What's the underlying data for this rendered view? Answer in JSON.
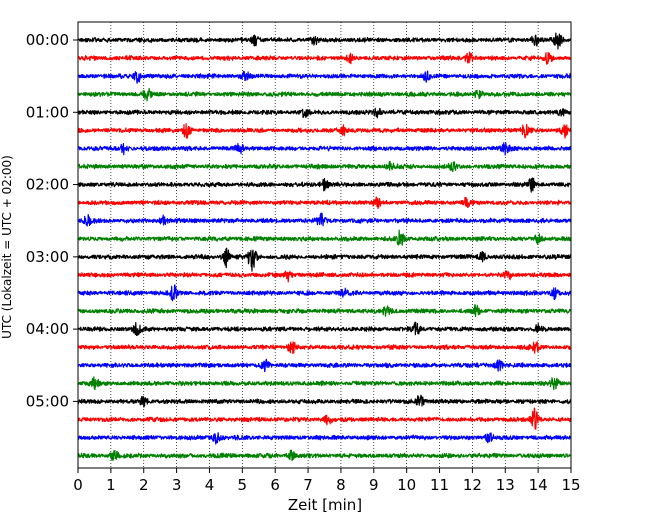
{
  "chart_data": {
    "type": "line",
    "title": "",
    "xlabel": "Zeit  [min]",
    "ylabel": "UTC (Lokalzeit = UTC + 02:00)",
    "xlim": [
      0,
      15
    ],
    "x_ticks": [
      "0",
      "1",
      "2",
      "3",
      "4",
      "5",
      "6",
      "7",
      "8",
      "9",
      "10",
      "11",
      "12",
      "13",
      "14",
      "15"
    ],
    "y_tick_labels": [
      "00:00",
      "01:00",
      "02:00",
      "03:00",
      "04:00",
      "05:00"
    ],
    "y_tick_rows": [
      0,
      4,
      8,
      12,
      16,
      20
    ],
    "grid": "vertical dotted",
    "trace_interval_min": 15,
    "trace_colors": [
      "#000000",
      "#ff0000",
      "#0000ff",
      "#008000"
    ],
    "traces": [
      {
        "start": "00:00",
        "color": "#000000",
        "events": [
          [
            5.4,
            5
          ],
          [
            7.2,
            4
          ],
          [
            13.9,
            6
          ],
          [
            14.6,
            7
          ]
        ]
      },
      {
        "start": "00:15",
        "color": "#ff0000",
        "events": [
          [
            8.3,
            4
          ],
          [
            11.9,
            5
          ],
          [
            14.3,
            5
          ]
        ]
      },
      {
        "start": "00:30",
        "color": "#0000ff",
        "events": [
          [
            1.8,
            7
          ],
          [
            5.1,
            4
          ],
          [
            10.6,
            4
          ]
        ]
      },
      {
        "start": "00:45",
        "color": "#008000",
        "events": [
          [
            2.1,
            6
          ],
          [
            12.2,
            4
          ]
        ]
      },
      {
        "start": "01:00",
        "color": "#000000",
        "events": [
          [
            6.9,
            4
          ],
          [
            9.1,
            4
          ],
          [
            14.7,
            4
          ]
        ]
      },
      {
        "start": "01:15",
        "color": "#ff0000",
        "events": [
          [
            3.3,
            7
          ],
          [
            8.1,
            4
          ],
          [
            13.6,
            6
          ],
          [
            14.8,
            6
          ]
        ]
      },
      {
        "start": "01:30",
        "color": "#0000ff",
        "events": [
          [
            1.4,
            5
          ],
          [
            4.9,
            4
          ],
          [
            13.0,
            5
          ]
        ]
      },
      {
        "start": "01:45",
        "color": "#008000",
        "events": [
          [
            9.5,
            5
          ],
          [
            11.4,
            4
          ]
        ]
      },
      {
        "start": "02:00",
        "color": "#000000",
        "events": [
          [
            7.5,
            5
          ],
          [
            13.8,
            6
          ]
        ]
      },
      {
        "start": "02:15",
        "color": "#ff0000",
        "events": [
          [
            9.1,
            5
          ],
          [
            11.8,
            4
          ]
        ]
      },
      {
        "start": "02:30",
        "color": "#0000ff",
        "events": [
          [
            0.3,
            6
          ],
          [
            2.6,
            4
          ],
          [
            7.4,
            6
          ]
        ]
      },
      {
        "start": "02:45",
        "color": "#008000",
        "events": [
          [
            9.8,
            7
          ],
          [
            14.0,
            4
          ]
        ]
      },
      {
        "start": "03:00",
        "color": "#000000",
        "events": [
          [
            4.5,
            10
          ],
          [
            5.3,
            14
          ],
          [
            12.3,
            4
          ]
        ]
      },
      {
        "start": "03:15",
        "color": "#ff0000",
        "events": [
          [
            6.4,
            5
          ],
          [
            13.1,
            4
          ]
        ]
      },
      {
        "start": "03:30",
        "color": "#0000ff",
        "events": [
          [
            2.9,
            7
          ],
          [
            8.1,
            4
          ],
          [
            14.5,
            5
          ]
        ]
      },
      {
        "start": "03:45",
        "color": "#008000",
        "events": [
          [
            9.4,
            4
          ],
          [
            12.1,
            5
          ]
        ]
      },
      {
        "start": "04:00",
        "color": "#000000",
        "events": [
          [
            1.8,
            5
          ],
          [
            10.3,
            6
          ],
          [
            14.0,
            5
          ]
        ]
      },
      {
        "start": "04:15",
        "color": "#ff0000",
        "events": [
          [
            6.5,
            6
          ],
          [
            13.9,
            6
          ]
        ]
      },
      {
        "start": "04:30",
        "color": "#0000ff",
        "events": [
          [
            5.7,
            5
          ],
          [
            12.8,
            5
          ]
        ]
      },
      {
        "start": "04:45",
        "color": "#008000",
        "events": [
          [
            0.5,
            5
          ],
          [
            14.5,
            6
          ]
        ]
      },
      {
        "start": "05:00",
        "color": "#000000",
        "events": [
          [
            2.0,
            4
          ],
          [
            10.4,
            6
          ]
        ]
      },
      {
        "start": "05:15",
        "color": "#ff0000",
        "events": [
          [
            13.9,
            10
          ],
          [
            7.6,
            4
          ]
        ]
      },
      {
        "start": "05:30",
        "color": "#0000ff",
        "events": [
          [
            4.2,
            5
          ],
          [
            12.5,
            4
          ]
        ]
      },
      {
        "start": "05:45",
        "color": "#008000",
        "events": [
          [
            1.1,
            5
          ],
          [
            6.5,
            4
          ]
        ]
      }
    ]
  }
}
